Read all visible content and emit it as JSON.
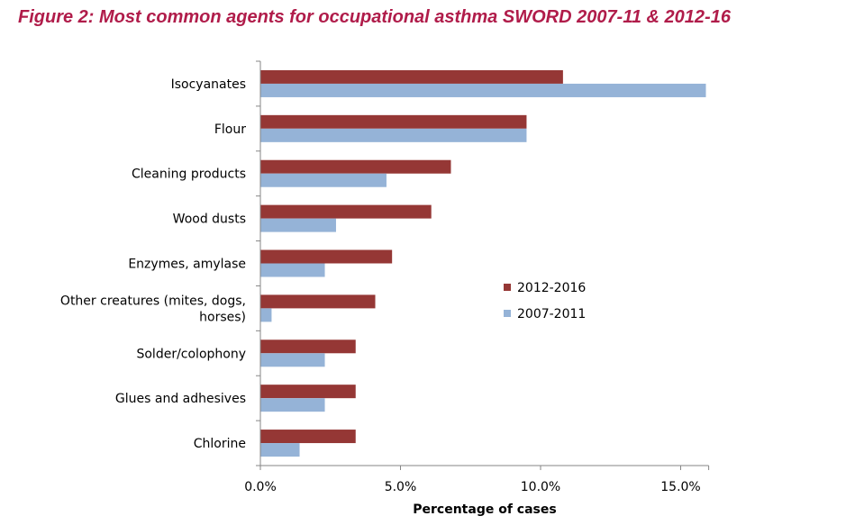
{
  "title": "Figure 2: Most common agents for occupational asthma SWORD 2007-11 & 2012-16",
  "chart_data": {
    "type": "bar",
    "orientation": "horizontal",
    "categories": [
      "Isocyanates",
      "Flour",
      "Cleaning products",
      "Wood dusts",
      "Enzymes, amylase",
      "Other creatures (mites, dogs, horses)",
      "Solder/colophony",
      "Glues and adhesives",
      "Chlorine"
    ],
    "category_lines": [
      [
        "Isocyanates"
      ],
      [
        "Flour"
      ],
      [
        "Cleaning products"
      ],
      [
        "Wood dusts"
      ],
      [
        "Enzymes, amylase"
      ],
      [
        "Other creatures (mites, dogs,",
        "horses)"
      ],
      [
        "Solder/colophony"
      ],
      [
        "Glues and adhesives"
      ],
      [
        "Chlorine"
      ]
    ],
    "series": [
      {
        "name": "2012-2016",
        "color": "#953735",
        "values": [
          10.8,
          9.5,
          6.8,
          6.1,
          4.7,
          4.1,
          3.4,
          3.4,
          3.4
        ]
      },
      {
        "name": "2007-2011",
        "color": "#95b3d7",
        "values": [
          15.9,
          9.5,
          4.5,
          2.7,
          2.3,
          0.4,
          2.3,
          2.3,
          1.4
        ]
      }
    ],
    "xlabel": "Percentage of cases",
    "xlim": [
      0,
      16
    ],
    "xticks": [
      0,
      5,
      10,
      15
    ],
    "xtick_labels": [
      "0.0%",
      "5.0%",
      "10.0%",
      "15.0%"
    ],
    "grid": false,
    "legend_position": "right"
  }
}
